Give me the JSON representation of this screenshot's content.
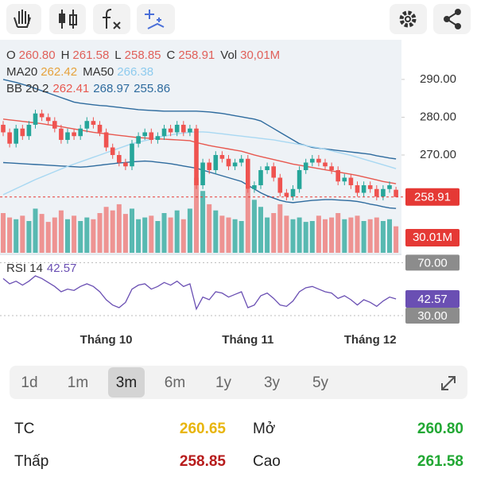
{
  "chart_data": {
    "type": "candlestick",
    "categories": [
      null,
      null,
      null,
      null,
      null,
      null,
      null,
      null,
      null,
      null,
      null,
      null,
      null,
      null,
      null,
      null,
      "Tháng 10",
      null,
      null,
      null,
      null,
      null,
      null,
      null,
      null,
      null,
      null,
      null,
      null,
      null,
      null,
      null,
      null,
      null,
      null,
      null,
      null,
      null,
      "Tháng 11",
      null,
      null,
      null,
      null,
      null,
      null,
      null,
      null,
      null,
      null,
      null,
      null,
      null,
      null,
      null,
      null,
      null,
      null,
      "Tháng 12",
      null,
      null,
      null,
      null
    ],
    "open": [
      278,
      276,
      273,
      277,
      275,
      278,
      281,
      280,
      279,
      277,
      274,
      276,
      275,
      277,
      279,
      278,
      276,
      272,
      270,
      268,
      267,
      273,
      275,
      276,
      274,
      275,
      277,
      276,
      278,
      276,
      277,
      262,
      268,
      266,
      270,
      269,
      267,
      268,
      269,
      261,
      262,
      266,
      267,
      264,
      260,
      259,
      261,
      266,
      268,
      269,
      268,
      267,
      266,
      263,
      264,
      262,
      260,
      262,
      261,
      259,
      261,
      260.8
    ],
    "high": [
      279,
      277,
      278,
      278,
      279,
      282,
      282,
      281,
      280,
      278,
      277,
      277,
      278,
      280,
      280,
      279,
      277,
      273,
      271,
      269,
      274,
      276,
      277,
      277,
      276,
      278,
      278,
      279,
      279,
      278,
      278,
      269,
      269,
      271,
      271,
      270,
      269,
      270,
      270,
      263,
      267,
      268,
      268,
      265,
      261,
      262,
      267,
      269,
      270,
      270,
      269,
      268,
      267,
      265,
      265,
      263,
      263,
      263,
      262,
      262,
      263,
      261.58
    ],
    "low": [
      275,
      272,
      272,
      274,
      274,
      277,
      279,
      278,
      276,
      273,
      273,
      274,
      274,
      276,
      277,
      275,
      271,
      269,
      267,
      266,
      266,
      272,
      274,
      273,
      273,
      274,
      275,
      275,
      275,
      275,
      261,
      261,
      265,
      265,
      268,
      266,
      266,
      267,
      260,
      260,
      261,
      265,
      263,
      259,
      258,
      258,
      260,
      265,
      267,
      267,
      266,
      265,
      262,
      262,
      261,
      259,
      259,
      260,
      258,
      258,
      260,
      258.85
    ],
    "close": [
      276,
      273,
      277,
      275,
      278,
      281,
      280,
      279,
      277,
      274,
      276,
      275,
      277,
      279,
      278,
      276,
      272,
      270,
      268,
      267,
      273,
      275,
      276,
      274,
      275,
      277,
      276,
      278,
      276,
      277,
      262,
      268,
      266,
      270,
      269,
      267,
      268,
      269,
      261,
      262,
      266,
      267,
      264,
      260,
      259,
      261,
      266,
      268,
      269,
      268,
      267,
      266,
      263,
      264,
      262,
      260,
      262,
      261,
      259,
      261,
      262,
      258.91
    ],
    "up_color": "#26a69a",
    "down_color": "#ef5350",
    "last_price_color": "#e53935",
    "ylim": [
      243.7,
      300.5
    ],
    "yticks": [
      {
        "value": 270,
        "label": "270.00"
      },
      {
        "value": 280,
        "label": "280.00"
      },
      {
        "value": 290,
        "label": "290.00"
      }
    ],
    "ohlc_header": [
      {
        "label": "O",
        "value": "260.80"
      },
      {
        "label": "H",
        "value": "261.58"
      },
      {
        "label": "L",
        "value": "258.85"
      },
      {
        "label": "C",
        "value": "258.91"
      },
      {
        "label": "Vol",
        "value": "30,01M"
      }
    ],
    "overlays": [
      {
        "name": "MA20",
        "color": "#e8584f",
        "label_color": "#e6a23c",
        "values": [
          279.5,
          279.3,
          279.1,
          278.9,
          278.7,
          278.5,
          278.3,
          278,
          277.8,
          277.5,
          277.2,
          276.9,
          276.6,
          276.3,
          276,
          275.8,
          275.6,
          275.4,
          275.2,
          275,
          274.8,
          274.6,
          274.5,
          274.4,
          274.3,
          274.2,
          274.1,
          274,
          273.9,
          273.8,
          273.3,
          272.9,
          272.5,
          272.2,
          271.9,
          271.6,
          271.3,
          271,
          270.5,
          270,
          269.6,
          269.2,
          268.8,
          268.4,
          268,
          267.6,
          267.3,
          267,
          266.7,
          266.4,
          266.1,
          265.8,
          265.5,
          265.2,
          264.9,
          264.6,
          264.2,
          263.8,
          263.4,
          263,
          262.7,
          262.42
        ]
      },
      {
        "name": "MA50",
        "color": "#a8d8f2",
        "label_color": "#8ecbee",
        "values": [
          259.5,
          260.3,
          261.1,
          261.9,
          262.7,
          263.5,
          264.2,
          264.9,
          265.6,
          266.3,
          267,
          267.6,
          268.2,
          268.8,
          269.4,
          270,
          270.6,
          271.2,
          271.8,
          272.4,
          273,
          273.4,
          273.8,
          274.2,
          274.6,
          275,
          275.3,
          275.6,
          275.8,
          276,
          276.1,
          276.1,
          276,
          275.8,
          275.6,
          275.4,
          275.2,
          275,
          274.8,
          274.6,
          274.4,
          274.2,
          274,
          273.7,
          273.4,
          273.1,
          272.8,
          272.5,
          272.2,
          271.9,
          271.5,
          271.1,
          270.7,
          270.3,
          269.9,
          269.4,
          268.9,
          268.4,
          267.9,
          267.4,
          266.9,
          266.38
        ]
      }
    ],
    "bollinger": {
      "name": "BB 20 2",
      "color": "#2e6b9e",
      "mid_color": "#e8584f",
      "mid_value": 262.41,
      "upper": [
        290,
        289.6,
        289.2,
        288.7,
        288.2,
        287.6,
        287,
        286.4,
        285.8,
        285.2,
        284.6,
        284,
        283.7,
        283.5,
        283.3,
        283.1,
        283,
        282.8,
        282.6,
        282.4,
        282.2,
        282,
        281.9,
        281.8,
        281.7,
        281.6,
        281.6,
        281.6,
        281.6,
        281.6,
        281.6,
        281.5,
        281.4,
        281.2,
        281,
        280.7,
        280.4,
        280.1,
        279.8,
        279.5,
        279,
        278,
        277,
        276,
        275,
        274,
        273,
        272.5,
        272,
        271.8,
        271.6,
        271.4,
        271.2,
        271,
        270.8,
        270.6,
        270.4,
        270.2,
        269.8,
        269.5,
        269.2,
        268.97
      ],
      "lower": [
        268,
        267.9,
        267.8,
        267.7,
        267.6,
        267.5,
        267.4,
        267.3,
        267.2,
        267.1,
        267,
        266.9,
        266.8,
        266.9,
        267.1,
        267.3,
        267.5,
        267.7,
        267.9,
        268,
        268.2,
        268.3,
        268.4,
        268.3,
        268.1,
        267.9,
        267.7,
        267.4,
        267.1,
        266.8,
        266.5,
        266,
        265.5,
        265,
        264.5,
        264,
        263.5,
        263,
        262,
        261,
        260,
        259.2,
        258.6,
        258,
        257.6,
        257.4,
        257.6,
        257.8,
        258,
        258.1,
        258.2,
        258.2,
        258.1,
        258,
        257.9,
        257.7,
        257.4,
        257,
        256.7,
        256.3,
        256,
        255.86
      ]
    },
    "volume": {
      "ylim": [
        0,
        90
      ],
      "last_label": "30.01M",
      "values": [
        45,
        40,
        38,
        42,
        36,
        50,
        44,
        35,
        40,
        48,
        38,
        42,
        36,
        40,
        38,
        45,
        52,
        48,
        55,
        44,
        50,
        38,
        40,
        42,
        36,
        45,
        40,
        48,
        38,
        50,
        85,
        70,
        55,
        48,
        42,
        40,
        38,
        36,
        72,
        60,
        52,
        40,
        45,
        55,
        42,
        38,
        40,
        35,
        36,
        42,
        38,
        40,
        45,
        38,
        40,
        42,
        36,
        38,
        40,
        36,
        38,
        30.01
      ]
    },
    "rsi": {
      "name": "RSI 14",
      "color": "#6a4fb3",
      "ylim": [
        24,
        75
      ],
      "yticks": [
        {
          "value": 70,
          "label": "70.00"
        },
        {
          "value": 30,
          "label": "30.00"
        }
      ],
      "values": [
        58,
        54,
        56,
        53,
        56,
        60,
        58,
        55,
        52,
        48,
        50,
        49,
        52,
        54,
        52,
        48,
        42,
        38,
        36,
        40,
        50,
        53,
        54,
        50,
        52,
        55,
        53,
        56,
        52,
        54,
        35,
        44,
        42,
        48,
        47,
        44,
        46,
        48,
        36,
        38,
        45,
        47,
        43,
        38,
        37,
        41,
        48,
        51,
        52,
        50,
        48,
        47,
        43,
        45,
        42,
        38,
        42,
        40,
        37,
        41,
        44,
        42.57
      ]
    }
  },
  "periods": [
    {
      "label": "1d"
    },
    {
      "label": "1m"
    },
    {
      "label": "3m",
      "selected": true
    },
    {
      "label": "6m"
    },
    {
      "label": "1y"
    },
    {
      "label": "3y"
    },
    {
      "label": "5y"
    }
  ],
  "stats": [
    {
      "label": "TC",
      "value": "260.65",
      "color": "#e8b50c"
    },
    {
      "label": "Mở",
      "value": "260.80",
      "color": "#22a834"
    },
    {
      "label": "Thấp",
      "value": "258.85",
      "color": "#b71c1c"
    },
    {
      "label": "Cao",
      "value": "261.58",
      "color": "#22a834"
    }
  ]
}
